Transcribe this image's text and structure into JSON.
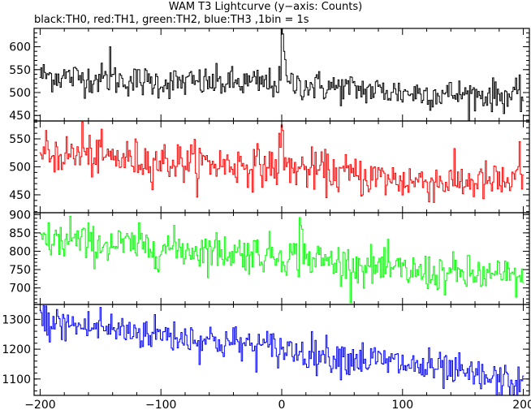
{
  "header": {
    "title": "WAM T3 Lightcurve (y−axis: Counts)",
    "subtitle": "black:TH0, red:TH1, green:TH2, blue:TH3 ,1bin = 1s"
  },
  "chart_data": {
    "type": "line",
    "x_ticks": [
      -200,
      -100,
      0,
      100,
      200
    ],
    "x_tick_labels": [
      "−200",
      "−100",
      "0",
      "100",
      "200"
    ],
    "xlim": [
      -205,
      205
    ],
    "panels": [
      {
        "color": "#000000",
        "ylim": [
          438,
          640
        ],
        "y_ticks": [
          450,
          500,
          550,
          600
        ],
        "trend": [
          [
            -200,
            538
          ],
          [
            -100,
            522
          ],
          [
            0,
            520
          ],
          [
            100,
            500
          ],
          [
            200,
            492
          ]
        ],
        "noise_sd": 17,
        "spikes": [
          [
            -142,
            600
          ],
          [
            0,
            640
          ],
          [
            1,
            628
          ],
          [
            2,
            590
          ],
          [
            3,
            572
          ]
        ]
      },
      {
        "color": "#ff0000",
        "ylim": [
          418,
          582
        ],
        "y_ticks": [
          450,
          500,
          550
        ],
        "trend": [
          [
            -200,
            525
          ],
          [
            -100,
            510
          ],
          [
            0,
            500
          ],
          [
            100,
            475
          ],
          [
            200,
            472
          ]
        ],
        "noise_sd": 18,
        "spikes": [
          [
            -165,
            580
          ],
          [
            -2,
            560
          ],
          [
            0,
            575
          ],
          [
            1,
            565
          ],
          [
            197,
            545
          ]
        ]
      },
      {
        "color": "#00ff00",
        "ylim": [
          655,
          905
        ],
        "y_ticks": [
          700,
          750,
          800,
          850,
          900
        ],
        "trend": [
          [
            -200,
            830
          ],
          [
            -100,
            810
          ],
          [
            0,
            790
          ],
          [
            100,
            745
          ],
          [
            200,
            728
          ]
        ],
        "noise_sd": 26,
        "spikes": [
          [
            -175,
            895
          ],
          [
            15,
            892
          ],
          [
            16,
            870
          ],
          [
            17,
            860
          ]
        ]
      },
      {
        "color": "#0000ff",
        "ylim": [
          1045,
          1350
        ],
        "y_ticks": [
          1100,
          1200,
          1300
        ],
        "trend": [
          [
            -200,
            1290
          ],
          [
            -100,
            1250
          ],
          [
            0,
            1200
          ],
          [
            100,
            1150
          ],
          [
            200,
            1080
          ]
        ],
        "noise_sd": 30,
        "spikes": [
          [
            -195,
            1345
          ],
          [
            -150,
            1340
          ]
        ]
      }
    ]
  }
}
